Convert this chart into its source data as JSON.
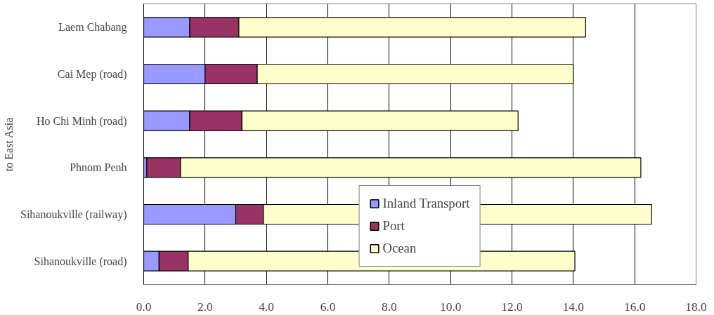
{
  "chart_data": {
    "type": "bar",
    "orientation": "horizontal",
    "stacked": true,
    "ylabel": "to East Asia",
    "categories": [
      "Laem Chabang",
      "Cai Mep (road)",
      "Ho Chi Minh (road)",
      "Phnom Penh",
      "Sihanoukville (railway)",
      "Sihanoukville (road)"
    ],
    "series": [
      {
        "name": "Inland Transport",
        "color": "#9999ff",
        "values": [
          1.5,
          2.0,
          1.5,
          0.1,
          3.0,
          0.5
        ]
      },
      {
        "name": "Port",
        "color": "#993366",
        "values": [
          1.6,
          1.7,
          1.7,
          1.1,
          0.9,
          0.95
        ]
      },
      {
        "name": "Ocean",
        "color": "#ffffcc",
        "values": [
          11.3,
          10.3,
          9.0,
          15.0,
          12.65,
          12.6
        ]
      }
    ],
    "xlim": [
      0,
      18
    ],
    "xticks": [
      {
        "value": 0,
        "label": "0.0"
      },
      {
        "value": 2,
        "label": "2.0"
      },
      {
        "value": 4,
        "label": "4.0"
      },
      {
        "value": 6,
        "label": "6.0"
      },
      {
        "value": 8,
        "label": "8.0"
      },
      {
        "value": 10,
        "label": "10.0"
      },
      {
        "value": 12,
        "label": "12.0"
      },
      {
        "value": 14,
        "label": "14.0"
      },
      {
        "value": 16,
        "label": "16.0"
      },
      {
        "value": 18,
        "label": "18.0"
      }
    ],
    "grid": "x",
    "legend": "bottom"
  }
}
